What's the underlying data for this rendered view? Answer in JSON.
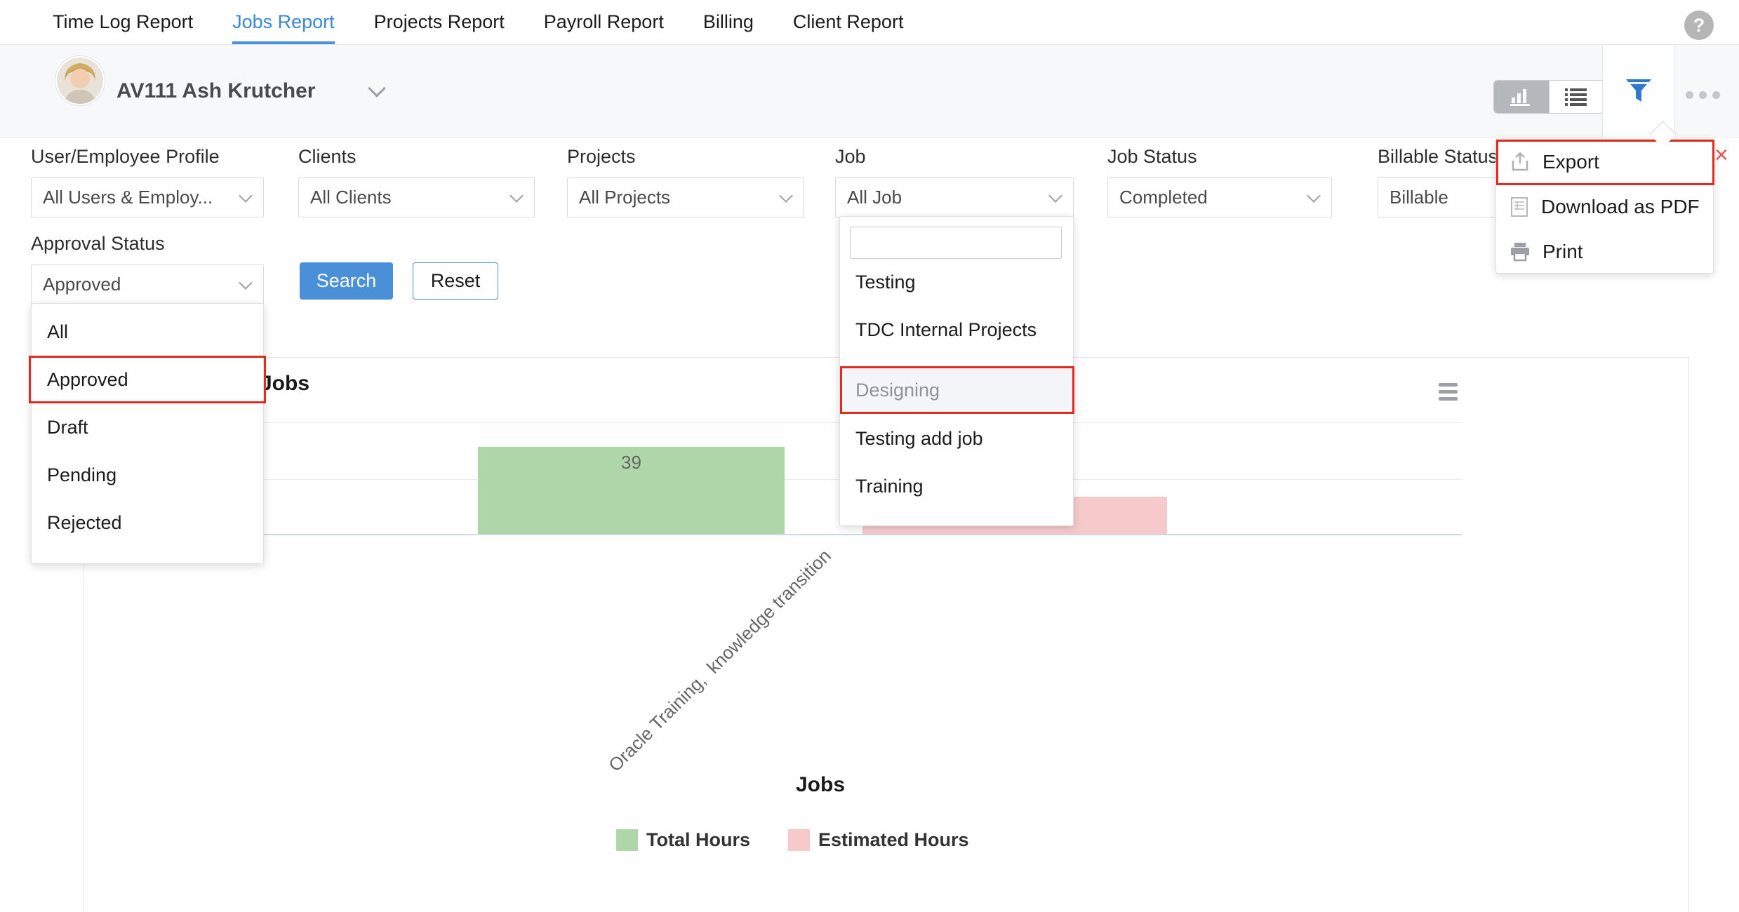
{
  "colors": {
    "accent_blue": "#4a90d9",
    "active_tab_blue": "#3a87d8",
    "funnel_blue": "#2e78d0",
    "annotation_red": "#e02b20",
    "bar_green": "#afd6a8",
    "bar_pink": "#f6caca"
  },
  "nav": {
    "tabs": [
      {
        "label": "Time Log Report",
        "active": false
      },
      {
        "label": "Jobs Report",
        "active": true
      },
      {
        "label": "Projects Report",
        "active": false
      },
      {
        "label": "Payroll Report",
        "active": false
      },
      {
        "label": "Billing",
        "active": false
      },
      {
        "label": "Client Report",
        "active": false
      }
    ],
    "help_glyph": "?"
  },
  "user_bar": {
    "name": "AV111 Ash Krutcher"
  },
  "filters": {
    "fields": [
      {
        "label": "User/Employee Profile",
        "value": "All Users & Employ..."
      },
      {
        "label": "Clients",
        "value": "All Clients"
      },
      {
        "label": "Projects",
        "value": "All Projects"
      },
      {
        "label": "Job",
        "value": "All Job"
      },
      {
        "label": "Job Status",
        "value": "Completed"
      },
      {
        "label": "Billable Status",
        "value": "Billable"
      }
    ],
    "approval": {
      "label": "Approval Status",
      "value": "Approved",
      "options": [
        "All",
        "Approved",
        "Draft",
        "Pending",
        "Rejected"
      ],
      "highlighted_option": "Approved"
    },
    "job_dropdown": {
      "search_value": "",
      "options": [
        "Testing",
        "TDC Internal Projects",
        "Designing",
        "Testing add job",
        "Training"
      ],
      "highlighted_option": "Designing"
    }
  },
  "buttons": {
    "search": "Search",
    "reset": "Reset"
  },
  "export_menu": {
    "items": [
      "Export",
      "Download as PDF",
      "Print"
    ],
    "close_glyph": "×"
  },
  "chart": {
    "header_title": "Jobs"
  },
  "chart_data": {
    "type": "bar",
    "title": "Jobs",
    "categories": [
      "Oracle Training,  knowledge transition"
    ],
    "series": [
      {
        "name": "Total Hours",
        "values": [
          39
        ],
        "color": "#afd6a8"
      },
      {
        "name": "Estimated Hours",
        "values": [
          17
        ],
        "color": "#f6caca"
      }
    ],
    "ylim": [
      0,
      50
    ],
    "gridline_step": 25,
    "grid": true,
    "y_tick_labels_shown": false,
    "legend_position": "bottom",
    "data_labels": {
      "Total Hours": "39"
    }
  }
}
